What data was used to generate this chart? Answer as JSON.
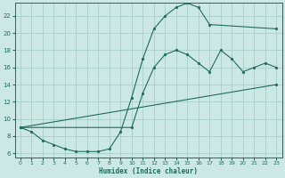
{
  "xlabel": "Humidex (Indice chaleur)",
  "xlim": [
    -0.5,
    23.5
  ],
  "ylim": [
    5.5,
    23.5
  ],
  "yticks": [
    6,
    8,
    10,
    12,
    14,
    16,
    18,
    20,
    22
  ],
  "xticks": [
    0,
    1,
    2,
    3,
    4,
    5,
    6,
    7,
    8,
    9,
    10,
    11,
    12,
    13,
    14,
    15,
    16,
    17,
    18,
    19,
    20,
    21,
    22,
    23
  ],
  "bg_color": "#cce8e4",
  "grid_color": "#a8ceca",
  "line_color": "#1e6b5e",
  "curve1_x": [
    0,
    1,
    2,
    3,
    4,
    5,
    6,
    7,
    8,
    9,
    10,
    11,
    12,
    13,
    14,
    15,
    16,
    17,
    23
  ],
  "curve1_y": [
    9,
    8.5,
    7.5,
    7,
    6.5,
    6.2,
    6.2,
    6.2,
    6.5,
    8.5,
    12.5,
    17,
    20.5,
    22,
    23,
    23.5,
    23,
    21,
    20.5
  ],
  "curve2_x": [
    0,
    10,
    11,
    12,
    13,
    14,
    15,
    16,
    17,
    18,
    19,
    20,
    21,
    22,
    23
  ],
  "curve2_y": [
    9,
    9,
    13,
    16,
    17.5,
    18,
    17.5,
    16.5,
    15.5,
    18,
    17,
    15.5,
    16,
    16.5,
    16
  ],
  "curve3_x": [
    0,
    23
  ],
  "curve3_y": [
    9,
    14
  ]
}
